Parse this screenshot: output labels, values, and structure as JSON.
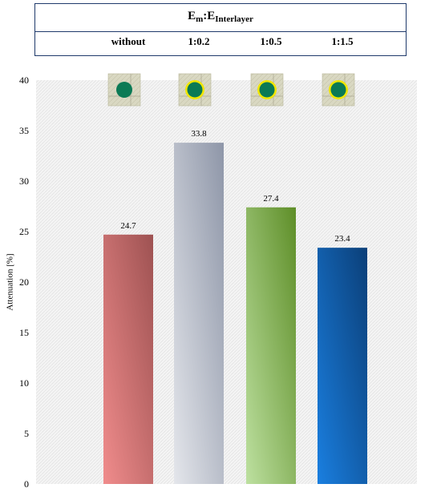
{
  "header": {
    "title_main": "E",
    "title_sub1": "m",
    "title_colon": ":E",
    "title_sub2": "Interlayer"
  },
  "chart_data": {
    "type": "bar",
    "categories": [
      "without",
      "1:0.2",
      "1:0.5",
      "1:1.5"
    ],
    "values": [
      24.7,
      33.8,
      27.4,
      23.4
    ],
    "data_labels": [
      "24.7",
      "33.8",
      "27.4",
      "23.4"
    ],
    "title": "",
    "xlabel": "",
    "ylabel": "Attenuation [%]",
    "ylim": [
      0,
      40
    ],
    "yticks": [
      0,
      5,
      10,
      15,
      20,
      25,
      30,
      35,
      40
    ],
    "grid": false,
    "bar_gradients": [
      [
        "#f08c8c",
        "#9e5252"
      ],
      [
        "#e4e6eb",
        "#8e96a8"
      ],
      [
        "#bde0a0",
        "#5e8e28"
      ],
      [
        "#1a7fe0",
        "#0b3f78"
      ]
    ],
    "inset_icons": [
      {
        "name": "specimen-icon-without",
        "ring": false
      },
      {
        "name": "specimen-icon-1-0.2",
        "ring": true
      },
      {
        "name": "specimen-icon-1-0.5",
        "ring": true
      },
      {
        "name": "specimen-icon-1-1.5",
        "ring": true
      }
    ],
    "icon_colors": {
      "core": "#0b7a55",
      "ring": "#f0e600",
      "tile": "#d9d8c2"
    }
  }
}
